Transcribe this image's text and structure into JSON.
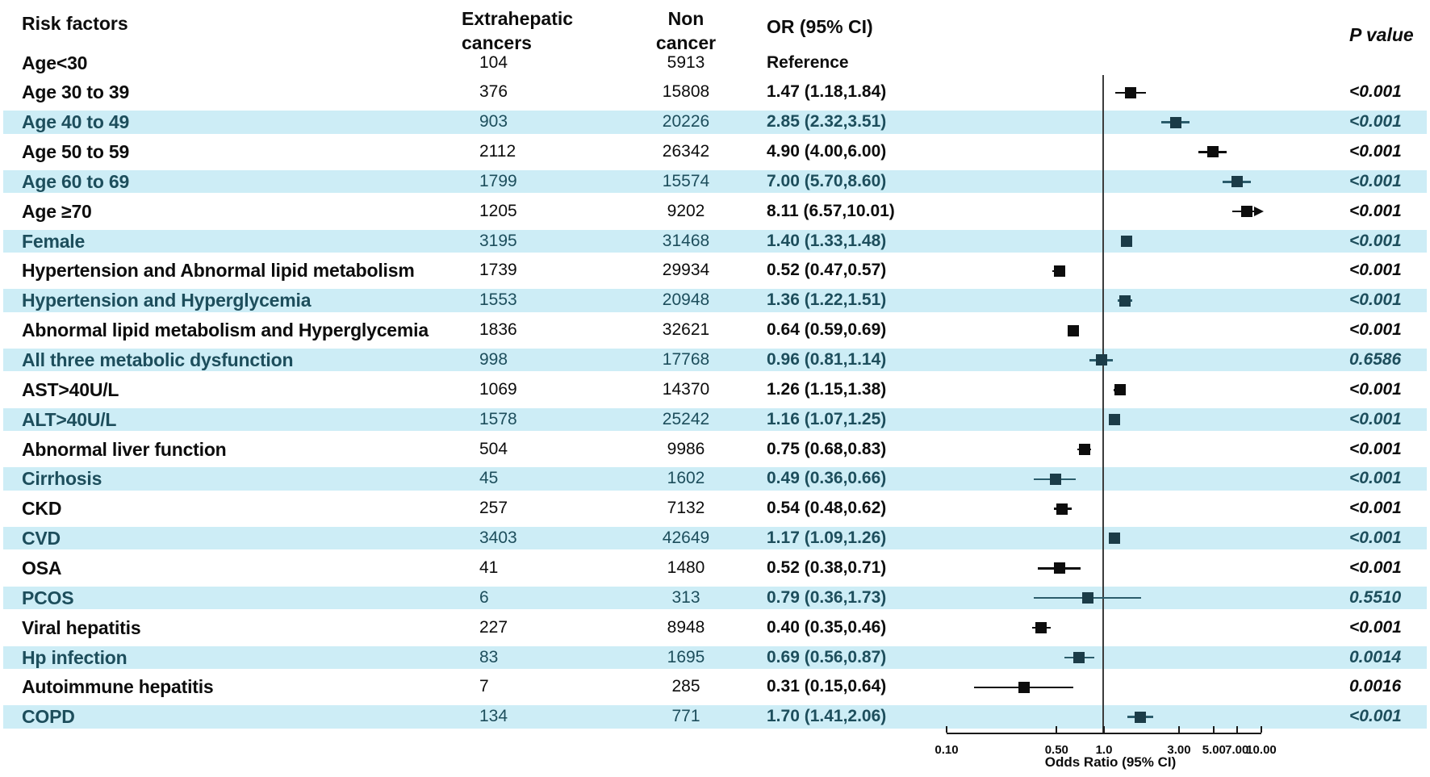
{
  "header": {
    "risk_factors": "Risk factors",
    "extrahepatic_line1": "Extrahepatic",
    "extrahepatic_line2": "cancers",
    "non_cancer_line1": "Non",
    "non_cancer_line2": "cancer",
    "or_ci": "OR (95% CI)",
    "p_value": "P value"
  },
  "colors": {
    "stripe": "#cdedf6",
    "teal_text": "#1d4e5c",
    "black_text": "#0d0d0d",
    "marker_black": "#0d0d0d",
    "marker_teal_square": "#1b3c48",
    "marker_teal_line": "#2b5c6b",
    "reference_line": "#3c3c3c",
    "axis": "#1a1a1a"
  },
  "chart_data": {
    "type": "forest",
    "x_scale": "log10",
    "x_axis": {
      "label": "Odds Ratio (95% CI)",
      "tick_values": [
        0.1,
        0.5,
        1.0,
        3.0,
        5.0,
        7.0,
        10.0
      ],
      "tick_labels": [
        "0.10",
        "0.50",
        "1.0",
        "3.00",
        "5.00",
        "7.00",
        "10.00"
      ],
      "range": [
        0.1,
        10.0
      ],
      "reference_line": 1.0
    },
    "rows": [
      {
        "label": "Age<30",
        "extrahepatic": "104",
        "non_cancer": "5913",
        "or_ci": "Reference",
        "p": "",
        "or": null,
        "lo": null,
        "hi": null,
        "striped": false
      },
      {
        "label": "Age 30 to 39",
        "extrahepatic": "376",
        "non_cancer": "15808",
        "or_ci": "1.47 (1.18,1.84)",
        "p": "<0.001",
        "or": 1.47,
        "lo": 1.18,
        "hi": 1.84,
        "striped": false
      },
      {
        "label": "Age 40 to 49",
        "extrahepatic": "903",
        "non_cancer": "20226",
        "or_ci": "2.85 (2.32,3.51)",
        "p": "<0.001",
        "or": 2.85,
        "lo": 2.32,
        "hi": 3.51,
        "striped": true
      },
      {
        "label": "Age 50 to 59",
        "extrahepatic": "2112",
        "non_cancer": "26342",
        "or_ci": "4.90 (4.00,6.00)",
        "p": "<0.001",
        "or": 4.9,
        "lo": 4.0,
        "hi": 6.0,
        "striped": false
      },
      {
        "label": "Age 60 to 69",
        "extrahepatic": "1799",
        "non_cancer": "15574",
        "or_ci": "7.00 (5.70,8.60)",
        "p": "<0.001",
        "or": 7.0,
        "lo": 5.7,
        "hi": 8.6,
        "striped": true
      },
      {
        "label": "Age ≥70",
        "extrahepatic": "1205",
        "non_cancer": "9202",
        "or_ci": "8.11 (6.57,10.01)",
        "p": "<0.001",
        "or": 8.11,
        "lo": 6.57,
        "hi": 10.01,
        "striped": false,
        "clip_hi": true
      },
      {
        "label": "Female",
        "extrahepatic": "3195",
        "non_cancer": "31468",
        "or_ci": "1.40 (1.33,1.48)",
        "p": "<0.001",
        "or": 1.4,
        "lo": 1.33,
        "hi": 1.48,
        "striped": true
      },
      {
        "label": "Hypertension and Abnormal lipid metabolism",
        "extrahepatic": "1739",
        "non_cancer": "29934",
        "or_ci": "0.52 (0.47,0.57)",
        "p": "<0.001",
        "or": 0.52,
        "lo": 0.47,
        "hi": 0.57,
        "striped": false
      },
      {
        "label": "Hypertension and Hyperglycemia",
        "extrahepatic": "1553",
        "non_cancer": "20948",
        "or_ci": "1.36 (1.22,1.51)",
        "p": "<0.001",
        "or": 1.36,
        "lo": 1.22,
        "hi": 1.51,
        "striped": true
      },
      {
        "label": "Abnormal lipid metabolism and Hyperglycemia",
        "extrahepatic": "1836",
        "non_cancer": "32621",
        "or_ci": "0.64 (0.59,0.69)",
        "p": "<0.001",
        "or": 0.64,
        "lo": 0.59,
        "hi": 0.69,
        "striped": false
      },
      {
        "label": "All three metabolic dysfunction",
        "extrahepatic": "998",
        "non_cancer": "17768",
        "or_ci": "0.96 (0.81,1.14)",
        "p": "0.6586",
        "or": 0.96,
        "lo": 0.81,
        "hi": 1.14,
        "striped": true
      },
      {
        "label": "AST>40U/L",
        "extrahepatic": "1069",
        "non_cancer": "14370",
        "or_ci": "1.26 (1.15,1.38)",
        "p": "<0.001",
        "or": 1.26,
        "lo": 1.15,
        "hi": 1.38,
        "striped": false
      },
      {
        "label": "ALT>40U/L",
        "extrahepatic": "1578",
        "non_cancer": "25242",
        "or_ci": "1.16 (1.07,1.25)",
        "p": "<0.001",
        "or": 1.16,
        "lo": 1.07,
        "hi": 1.25,
        "striped": true
      },
      {
        "label": "Abnormal liver function",
        "extrahepatic": "504",
        "non_cancer": "9986",
        "or_ci": "0.75 (0.68,0.83)",
        "p": "<0.001",
        "or": 0.75,
        "lo": 0.68,
        "hi": 0.83,
        "striped": false
      },
      {
        "label": "Cirrhosis",
        "extrahepatic": "45",
        "non_cancer": "1602",
        "or_ci": "0.49 (0.36,0.66)",
        "p": "<0.001",
        "or": 0.49,
        "lo": 0.36,
        "hi": 0.66,
        "striped": true
      },
      {
        "label": "CKD",
        "extrahepatic": "257",
        "non_cancer": "7132",
        "or_ci": "0.54 (0.48,0.62)",
        "p": "<0.001",
        "or": 0.54,
        "lo": 0.48,
        "hi": 0.62,
        "striped": false
      },
      {
        "label": "CVD",
        "extrahepatic": "3403",
        "non_cancer": "42649",
        "or_ci": "1.17 (1.09,1.26)",
        "p": "<0.001",
        "or": 1.17,
        "lo": 1.09,
        "hi": 1.26,
        "striped": true
      },
      {
        "label": "OSA",
        "extrahepatic": "41",
        "non_cancer": "1480",
        "or_ci": "0.52 (0.38,0.71)",
        "p": "<0.001",
        "or": 0.52,
        "lo": 0.38,
        "hi": 0.71,
        "striped": false
      },
      {
        "label": "PCOS",
        "extrahepatic": "6",
        "non_cancer": "313",
        "or_ci": "0.79 (0.36,1.73)",
        "p": "0.5510",
        "or": 0.79,
        "lo": 0.36,
        "hi": 1.73,
        "striped": true
      },
      {
        "label": "Viral hepatitis",
        "extrahepatic": "227",
        "non_cancer": "8948",
        "or_ci": "0.40 (0.35,0.46)",
        "p": "<0.001",
        "or": 0.4,
        "lo": 0.35,
        "hi": 0.46,
        "striped": false
      },
      {
        "label": "Hp infection",
        "extrahepatic": "83",
        "non_cancer": "1695",
        "or_ci": "0.69 (0.56,0.87)",
        "p": "0.0014",
        "or": 0.69,
        "lo": 0.56,
        "hi": 0.87,
        "striped": true
      },
      {
        "label": "Autoimmune hepatitis",
        "extrahepatic": "7",
        "non_cancer": "285",
        "or_ci": "0.31 (0.15,0.64)",
        "p": "0.0016",
        "or": 0.31,
        "lo": 0.15,
        "hi": 0.64,
        "striped": false
      },
      {
        "label": "COPD",
        "extrahepatic": "134",
        "non_cancer": "771",
        "or_ci": "1.70 (1.41,2.06)",
        "p": "<0.001",
        "or": 1.7,
        "lo": 1.41,
        "hi": 2.06,
        "striped": true
      }
    ]
  }
}
